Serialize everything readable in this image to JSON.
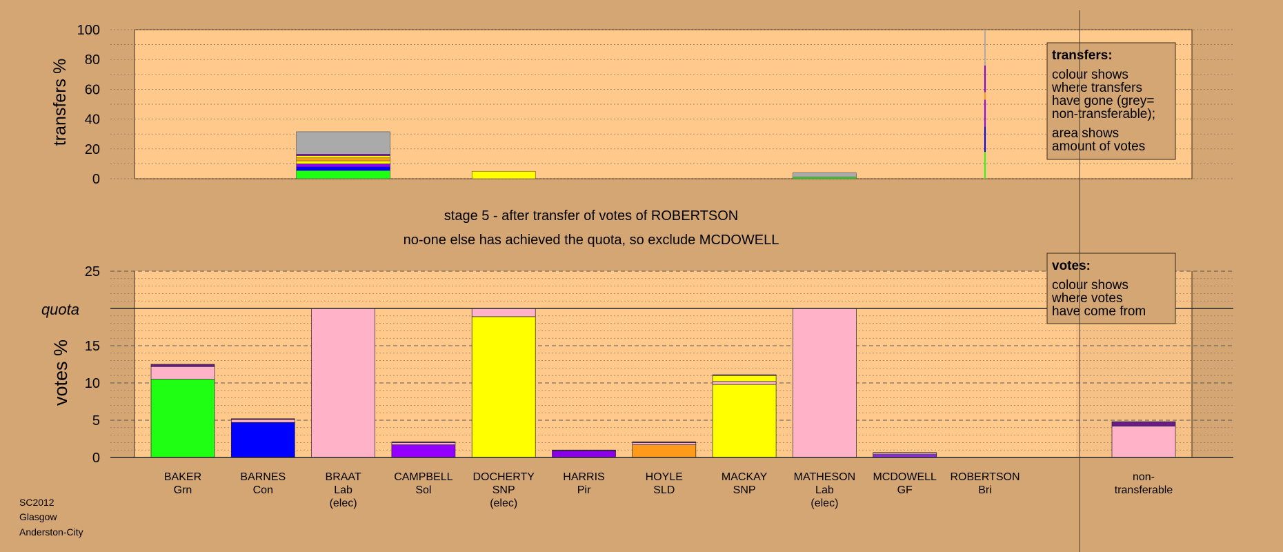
{
  "page_title": {
    "stage_line": "stage 5 - after transfer of votes of ROBERTSON",
    "action_line": "no-one else has achieved the quota, so exclude MCDOWELL"
  },
  "footer": {
    "line1": "SC2012",
    "line2": "Glasgow",
    "line3": "Anderston-City"
  },
  "legend_transfers": {
    "title": "transfers:",
    "lines": [
      "colour shows",
      "where transfers",
      "have gone (grey=",
      "non-transferable);",
      "area shows",
      "amount of votes"
    ]
  },
  "legend_votes": {
    "title": "votes:",
    "lines": [
      "colour shows",
      "where votes",
      "have come from"
    ]
  },
  "colors": {
    "background": "#d4a673",
    "plot_fill": "#ffc98c",
    "Grn": "#1eff14",
    "Con": "#0000ff",
    "Lab": "#ffb2c8",
    "Sol": "#9400ff",
    "SNP": "#ffff00",
    "Pir": "#8a00e6",
    "SLD": "#ff9a1a",
    "GF": "#8a2be2",
    "Bri": "#6a1a8a",
    "nontransferable": "#aaaaaa"
  },
  "chart_data": [
    {
      "type": "bar",
      "title": "",
      "xlabel": "",
      "ylabel": "transfers %",
      "ylim": [
        0,
        100
      ],
      "yticks": [
        0,
        20,
        40,
        60,
        80,
        100
      ],
      "bars": [
        {
          "column": 2,
          "width": "wide",
          "segments": [
            {
              "party": "Grn",
              "value": 5.5
            },
            {
              "party": "Con",
              "value": 2.5
            },
            {
              "party": "Sol",
              "value": 2
            },
            {
              "party": "SNP",
              "value": 2
            },
            {
              "party": "SLD",
              "value": 2
            },
            {
              "party": "SNP",
              "value": 1.5
            },
            {
              "party": "Pir",
              "value": 1
            },
            {
              "party": "nontransferable",
              "value": 15
            }
          ]
        },
        {
          "column": 4,
          "width": "normal",
          "segments": [
            {
              "party": "SNP",
              "value": 5
            }
          ]
        },
        {
          "column": 8,
          "width": "narrow",
          "segments": [
            {
              "party": "Grn",
              "value": 1
            },
            {
              "party": "nontransferable",
              "value": 3
            }
          ]
        },
        {
          "column": 10,
          "width": "line",
          "segments": [
            {
              "party": "Grn",
              "value": 18
            },
            {
              "party": "Con",
              "value": 17
            },
            {
              "party": "Sol",
              "value": 18
            },
            {
              "party": "SLD",
              "value": 5
            },
            {
              "party": "Pir",
              "value": 18
            },
            {
              "party": "nontransferable",
              "value": 24
            }
          ]
        }
      ]
    },
    {
      "type": "bar",
      "title": "",
      "xlabel": "",
      "ylabel": "votes %",
      "ylim": [
        0,
        25
      ],
      "yticks": [
        0,
        5,
        10,
        15,
        20,
        25
      ],
      "quota": 20,
      "quota_label": "quota",
      "categories": [
        {
          "name": "BAKER",
          "party": "Grn",
          "status": ""
        },
        {
          "name": "BARNES",
          "party": "Con",
          "status": ""
        },
        {
          "name": "BRAAT",
          "party": "Lab",
          "status": "(elec)"
        },
        {
          "name": "CAMPBELL",
          "party": "Sol",
          "status": ""
        },
        {
          "name": "DOCHERTY",
          "party": "SNP",
          "status": "(elec)"
        },
        {
          "name": "HARRIS",
          "party": "Pir",
          "status": ""
        },
        {
          "name": "HOYLE",
          "party": "SLD",
          "status": ""
        },
        {
          "name": "MACKAY",
          "party": "SNP",
          "status": ""
        },
        {
          "name": "MATHESON",
          "party": "Lab",
          "status": "(elec)"
        },
        {
          "name": "MCDOWELL",
          "party": "GF",
          "status": ""
        },
        {
          "name": "ROBERTSON",
          "party": "Bri",
          "status": ""
        }
      ],
      "nontransferable_label": [
        "non-",
        "transferable"
      ],
      "bars": [
        {
          "segments": [
            {
              "from": "Grn",
              "value": 10.5
            },
            {
              "from": "Lab",
              "value": 1.7
            },
            {
              "from": "Bri",
              "value": 0.3
            }
          ]
        },
        {
          "segments": [
            {
              "from": "Con",
              "value": 4.7
            },
            {
              "from": "Lab",
              "value": 0.4
            },
            {
              "from": "Bri",
              "value": 0.1
            }
          ]
        },
        {
          "segments": [
            {
              "from": "Lab",
              "value": 20
            }
          ]
        },
        {
          "segments": [
            {
              "from": "Sol",
              "value": 1.7
            },
            {
              "from": "Lab",
              "value": 0.3
            },
            {
              "from": "Bri",
              "value": 0.1
            }
          ]
        },
        {
          "segments": [
            {
              "from": "SNP",
              "value": 18.9
            },
            {
              "from": "Lab",
              "value": 1.1
            }
          ]
        },
        {
          "segments": [
            {
              "from": "Pir",
              "value": 0.9
            },
            {
              "from": "Bri",
              "value": 0.1
            }
          ]
        },
        {
          "segments": [
            {
              "from": "SLD",
              "value": 1.7
            },
            {
              "from": "Lab",
              "value": 0.3
            },
            {
              "from": "Bri",
              "value": 0.1
            }
          ]
        },
        {
          "segments": [
            {
              "from": "SNP",
              "value": 9.8
            },
            {
              "from": "Lab",
              "value": 0.4
            },
            {
              "from": "SNP",
              "value": 0.8
            },
            {
              "from": "Bri",
              "value": 0.1
            }
          ]
        },
        {
          "segments": [
            {
              "from": "Lab",
              "value": 20
            }
          ]
        },
        {
          "segments": [
            {
              "from": "GF",
              "value": 0.4
            },
            {
              "from": "Lab",
              "value": 0.2
            },
            {
              "from": "Bri",
              "value": 0.05
            }
          ]
        },
        {
          "segments": []
        }
      ],
      "nontransferable_bar": {
        "segments": [
          {
            "from": "Lab",
            "value": 4.2
          },
          {
            "from": "Bri",
            "value": 0.6
          }
        ]
      }
    }
  ]
}
